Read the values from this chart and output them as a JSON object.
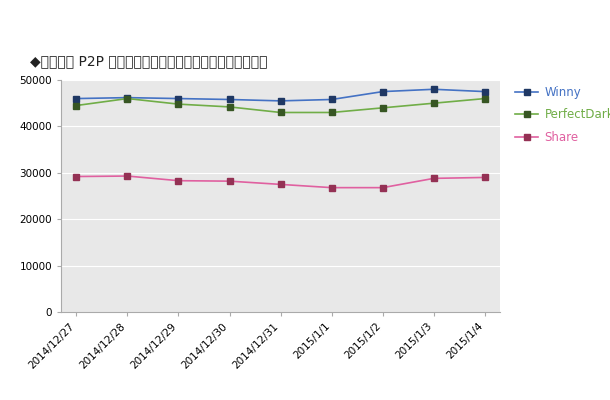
{
  "title": "◆年末年始 P2P ファイル共有ソフト利用者数（ノード数）",
  "x_labels": [
    "2014/12/27",
    "2014/12/28",
    "2014/12/29",
    "2014/12/30",
    "2014/12/31",
    "2015/1/1",
    "2015/1/2",
    "2015/1/3",
    "2015/1/4"
  ],
  "winny": [
    46000,
    46200,
    46000,
    45800,
    45500,
    45800,
    47500,
    48000,
    47500
  ],
  "perfectdark": [
    44500,
    46000,
    44800,
    44200,
    43000,
    43000,
    44000,
    45000,
    46000
  ],
  "share": [
    29200,
    29300,
    28300,
    28200,
    27500,
    26800,
    26800,
    28800,
    29000
  ],
  "winny_color": "#4472C4",
  "perfectdark_color": "#70AD47",
  "share_color": "#E060A0",
  "winny_marker_color": "#1F3864",
  "perfectdark_marker_color": "#375623",
  "share_marker_color": "#943154",
  "figure_bg_color": "#FFFFFF",
  "plot_bg_color": "#E8E8E8",
  "ylim": [
    0,
    50000
  ],
  "yticks": [
    0,
    10000,
    20000,
    30000,
    40000,
    50000
  ],
  "legend_labels": [
    "Winny",
    "PerfectDark",
    "Share"
  ],
  "title_fontsize": 10,
  "tick_fontsize": 7.5,
  "legend_fontsize": 8.5
}
